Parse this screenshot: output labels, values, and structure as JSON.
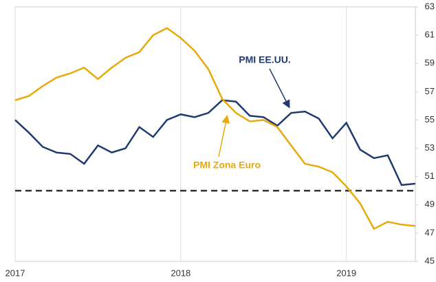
{
  "chart_data": {
    "type": "line",
    "categories": [
      "2017",
      null,
      null,
      null,
      null,
      null,
      null,
      null,
      null,
      null,
      null,
      null,
      "2018",
      null,
      null,
      null,
      null,
      null,
      null,
      null,
      null,
      null,
      null,
      null,
      "2019",
      null,
      null,
      null,
      null,
      null
    ],
    "series": [
      {
        "name": "PMI EE.UU.",
        "color": "#1f3a6e",
        "values": [
          55.0,
          54.1,
          53.1,
          52.7,
          52.6,
          51.9,
          53.2,
          52.7,
          53.0,
          54.5,
          53.8,
          55.0,
          55.4,
          55.2,
          55.5,
          56.4,
          56.3,
          55.3,
          55.2,
          54.6,
          55.5,
          55.6,
          55.1,
          53.7,
          54.8,
          52.9,
          52.3,
          52.5,
          50.4,
          50.5
        ]
      },
      {
        "name": "PMI Zona Euro",
        "color": "#e8a90c",
        "values": [
          56.4,
          56.7,
          57.4,
          58.0,
          58.3,
          58.7,
          57.9,
          58.7,
          59.4,
          59.8,
          61.0,
          61.5,
          60.8,
          59.9,
          58.6,
          56.5,
          55.5,
          54.9,
          55.0,
          54.5,
          53.2,
          51.9,
          51.7,
          51.3,
          50.3,
          49.1,
          47.3,
          47.8,
          47.6,
          47.5
        ]
      }
    ],
    "ylim": [
      45,
      63
    ],
    "yticks": [
      45,
      47,
      49,
      51,
      53,
      55,
      57,
      59,
      61,
      63
    ],
    "reference_line": 50
  }
}
